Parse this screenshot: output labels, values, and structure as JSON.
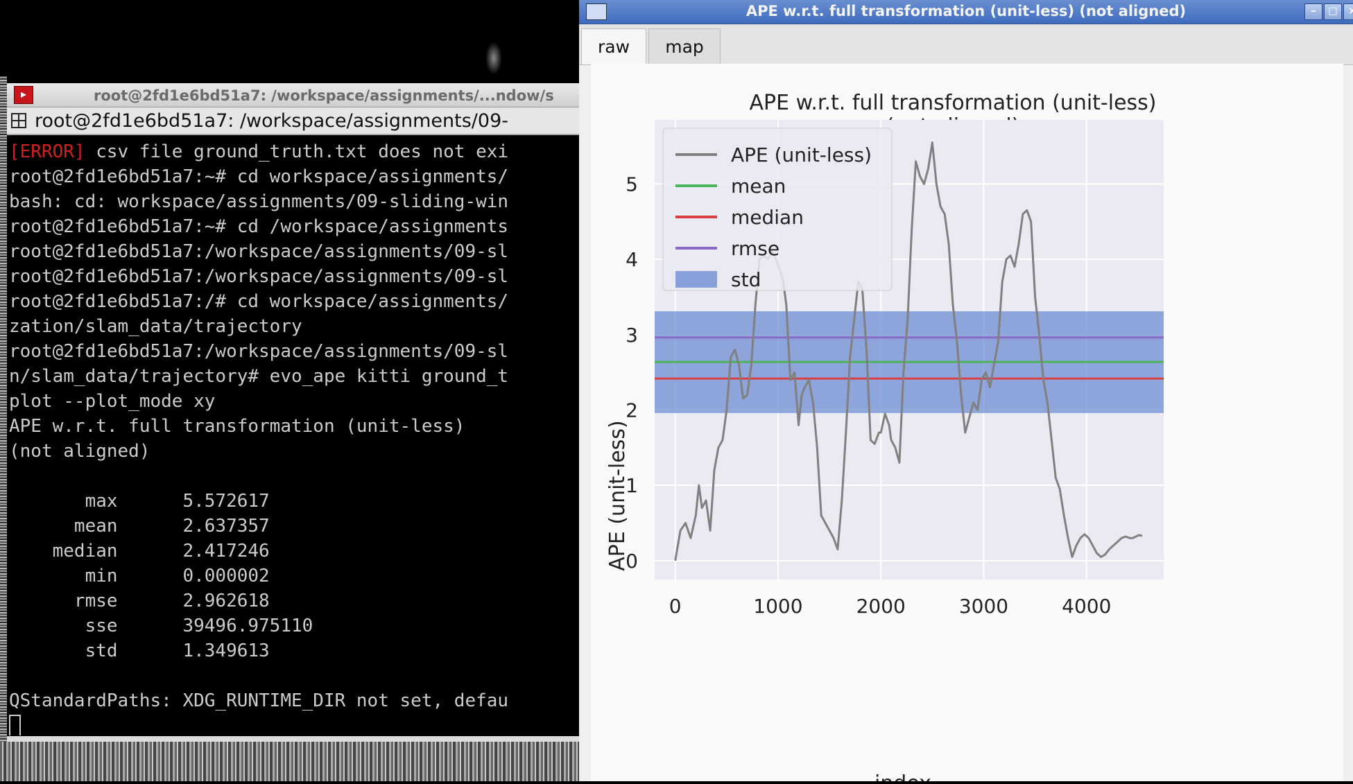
{
  "terminal": {
    "title": "root@2fd1e6bd51a7: /workspace/assignments/...ndow/s",
    "tab_label": "root@2fd1e6bd51a7: /workspace/assignments/09-",
    "lines": [
      {
        "err": "[ERROR]",
        "text": " csv file ground_truth.txt does not exi"
      },
      {
        "text": "root@2fd1e6bd51a7:~# cd workspace/assignments/"
      },
      {
        "text": "bash: cd: workspace/assignments/09-sliding-win"
      },
      {
        "text": "root@2fd1e6bd51a7:~# cd /workspace/assignments"
      },
      {
        "text": "root@2fd1e6bd51a7:/workspace/assignments/09-sl"
      },
      {
        "text": "root@2fd1e6bd51a7:/workspace/assignments/09-sl"
      },
      {
        "text": "root@2fd1e6bd51a7:/# cd workspace/assignments/"
      },
      {
        "text": "zation/slam_data/trajectory"
      },
      {
        "text": "root@2fd1e6bd51a7:/workspace/assignments/09-sl"
      },
      {
        "text": "n/slam_data/trajectory# evo_ape kitti ground_t"
      },
      {
        "text": "plot --plot_mode xy"
      },
      {
        "text": "APE w.r.t. full transformation (unit-less)"
      },
      {
        "text": "(not aligned)"
      },
      {
        "text": ""
      },
      {
        "text": "       max      5.572617"
      },
      {
        "text": "      mean      2.637357"
      },
      {
        "text": "    median      2.417246"
      },
      {
        "text": "       min      0.000002"
      },
      {
        "text": "      rmse      2.962618"
      },
      {
        "text": "       sse      39496.975110"
      },
      {
        "text": "       std      1.349613"
      },
      {
        "text": ""
      },
      {
        "text": "QStandardPaths: XDG_RUNTIME_DIR not set, defau"
      }
    ]
  },
  "plot_window": {
    "title": "APE w.r.t. full transformation (unit-less) (not aligned)",
    "buttons": {
      "minimize": "–",
      "maximize": "□",
      "close": "×"
    },
    "tabs": [
      {
        "label": "raw"
      },
      {
        "label": "map"
      }
    ]
  },
  "chart_data": {
    "type": "line",
    "title_line1": "APE w.r.t. full transformation (unit-less)",
    "title_line2": "(not aligned)",
    "xlabel": "index",
    "ylabel": "APE (unit-less)",
    "xlim": [
      -200,
      4750
    ],
    "ylim": [
      -0.25,
      5.85
    ],
    "xticks": [
      0,
      1000,
      2000,
      3000,
      4000
    ],
    "yticks": [
      0,
      1,
      2,
      3,
      4,
      5
    ],
    "grid": true,
    "legend_position": "upper-left",
    "legend": [
      {
        "label": "APE (unit-less)",
        "kind": "line",
        "color": "#808080"
      },
      {
        "label": "mean",
        "kind": "line",
        "color": "#4cb35a"
      },
      {
        "label": "median",
        "kind": "line",
        "color": "#d93f43"
      },
      {
        "label": "rmse",
        "kind": "line",
        "color": "#8a6ac6"
      },
      {
        "label": "std",
        "kind": "patch",
        "color": "#6d8ed2"
      }
    ],
    "stats": {
      "mean": 2.637357,
      "median": 2.417246,
      "rmse": 2.962618,
      "std": 1.349613,
      "max": 5.572617,
      "min": 2e-06
    },
    "series": [
      {
        "name": "APE (unit-less)",
        "color": "#808080",
        "x": [
          0,
          50,
          100,
          150,
          200,
          230,
          260,
          300,
          340,
          380,
          420,
          460,
          500,
          540,
          580,
          620,
          660,
          700,
          740,
          780,
          820,
          860,
          900,
          940,
          980,
          1020,
          1050,
          1080,
          1120,
          1160,
          1200,
          1230,
          1260,
          1300,
          1340,
          1380,
          1420,
          1460,
          1500,
          1540,
          1580,
          1620,
          1660,
          1700,
          1740,
          1780,
          1820,
          1860,
          1900,
          1940,
          1980,
          2000,
          2040,
          2080,
          2100,
          2140,
          2180,
          2220,
          2260,
          2300,
          2340,
          2380,
          2420,
          2460,
          2500,
          2540,
          2580,
          2620,
          2660,
          2700,
          2740,
          2780,
          2820,
          2860,
          2900,
          2940,
          2980,
          3020,
          3060,
          3100,
          3140,
          3180,
          3220,
          3260,
          3300,
          3340,
          3380,
          3420,
          3460,
          3500,
          3540,
          3580,
          3620,
          3660,
          3700,
          3740,
          3780,
          3820,
          3860,
          3900,
          3940,
          3980,
          4020,
          4060,
          4100,
          4140,
          4180,
          4220,
          4260,
          4300,
          4340,
          4380,
          4420,
          4450,
          4480,
          4510,
          4540
        ],
        "y": [
          0.0,
          0.4,
          0.5,
          0.3,
          0.6,
          1.0,
          0.7,
          0.8,
          0.4,
          1.2,
          1.5,
          1.6,
          2.0,
          2.7,
          2.8,
          2.6,
          2.15,
          2.2,
          2.6,
          3.4,
          4.0,
          4.05,
          4.0,
          4.1,
          4.0,
          3.85,
          3.7,
          3.4,
          2.4,
          2.5,
          1.8,
          2.2,
          2.3,
          2.4,
          2.1,
          1.5,
          0.6,
          0.5,
          0.4,
          0.3,
          0.15,
          0.8,
          1.7,
          2.7,
          3.2,
          3.7,
          3.6,
          2.8,
          1.6,
          1.55,
          1.7,
          1.7,
          1.95,
          1.8,
          1.6,
          1.5,
          1.3,
          2.5,
          3.2,
          4.4,
          5.3,
          5.1,
          5.0,
          5.2,
          5.55,
          5.0,
          4.7,
          4.6,
          4.2,
          3.4,
          2.9,
          2.2,
          1.7,
          1.9,
          2.1,
          2.0,
          2.4,
          2.5,
          2.3,
          2.6,
          2.9,
          3.7,
          4.0,
          4.05,
          3.9,
          4.2,
          4.6,
          4.65,
          4.5,
          3.5,
          3.0,
          2.4,
          2.1,
          1.6,
          1.1,
          0.95,
          0.6,
          0.3,
          0.05,
          0.2,
          0.3,
          0.35,
          0.3,
          0.2,
          0.1,
          0.05,
          0.08,
          0.15,
          0.2,
          0.25,
          0.3,
          0.32,
          0.3,
          0.3,
          0.32,
          0.34,
          0.33
        ]
      }
    ]
  }
}
